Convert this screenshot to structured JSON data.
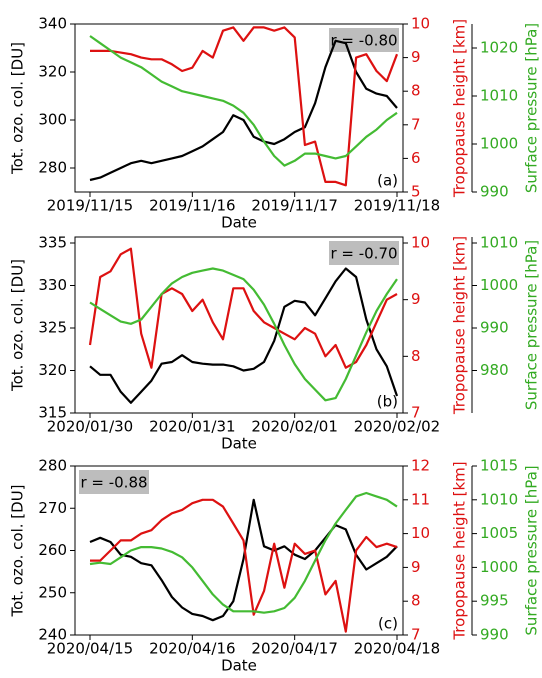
{
  "chart_data": [
    {
      "type": "line",
      "panel_label": "(a)",
      "annotation": "r = -0.80",
      "annotation_loc": "upper right",
      "x_label": "Date",
      "y_label": "Tot. ozo. col. [DU]",
      "y2_label": "Tropopause height [km]",
      "y3_label": "Surface pressure [hPa]",
      "xlim": [
        "2019/11/15",
        "2019/11/18"
      ],
      "xticks": [
        "2019/11/15",
        "2019/11/16",
        "2019/11/17",
        "2019/11/18"
      ],
      "ylim": [
        270,
        340
      ],
      "yticks": [
        280,
        300,
        320,
        340
      ],
      "y2lim": [
        5,
        10
      ],
      "y2ticks": [
        5,
        6,
        7,
        8,
        9,
        10
      ],
      "y3lim": [
        990,
        1025
      ],
      "y3ticks": [
        990,
        1000,
        1010,
        1020
      ],
      "series": [
        {
          "axis": "y",
          "color": "#000000",
          "values": [
            275,
            276,
            278,
            280,
            282,
            283,
            282,
            283,
            284,
            285,
            287,
            289,
            292,
            295,
            302,
            300,
            293,
            291,
            290,
            292,
            295,
            297,
            307,
            322,
            333,
            332,
            320,
            313,
            311,
            310,
            305
          ]
        },
        {
          "axis": "y2",
          "color": "#dd1111",
          "values": [
            9.2,
            9.2,
            9.2,
            9.15,
            9.1,
            9.0,
            8.95,
            8.95,
            8.8,
            8.6,
            8.7,
            9.2,
            9.0,
            9.8,
            9.9,
            9.5,
            9.9,
            9.9,
            9.8,
            9.9,
            9.6,
            6.4,
            6.5,
            5.3,
            5.3,
            5.2,
            9.0,
            9.1,
            8.6,
            8.3,
            9.1
          ]
        },
        {
          "axis": "y3",
          "color": "#44bb33",
          "values": [
            1022.5,
            1021,
            1019.5,
            1018,
            1017,
            1016,
            1014.5,
            1013,
            1012,
            1011,
            1010.5,
            1010,
            1009.5,
            1009,
            1008,
            1006.5,
            1004,
            1000.5,
            997.5,
            995.5,
            996.5,
            998,
            998,
            997.5,
            997,
            997.5,
            999.5,
            1001.5,
            1003,
            1005,
            1006.5
          ]
        }
      ]
    },
    {
      "type": "line",
      "panel_label": "(b)",
      "annotation": "r = -0.70",
      "annotation_loc": "upper right",
      "x_label": "Date",
      "y_label": "Tot. ozo. col. [DU]",
      "y2_label": "Tropopause height [km]",
      "y3_label": "Surface pressure [hPa]",
      "xlim": [
        "2020/01/30",
        "2020/02/02"
      ],
      "xticks": [
        "2020/01/30",
        "2020/01/31",
        "2020/02/01",
        "2020/02/02"
      ],
      "ylim": [
        315,
        335
      ],
      "yticks": [
        315,
        320,
        325,
        330,
        335
      ],
      "y2lim": [
        7,
        10
      ],
      "y2ticks": [
        7,
        8,
        9,
        10
      ],
      "y3lim": [
        970,
        1010
      ],
      "y3ticks": [
        980,
        990,
        1000,
        1010
      ],
      "series": [
        {
          "axis": "y",
          "color": "#000000",
          "values": [
            320.5,
            319.5,
            319.5,
            317.5,
            316.2,
            317.5,
            318.8,
            320.8,
            321,
            321.8,
            321,
            320.8,
            320.7,
            320.7,
            320.5,
            320,
            320.2,
            321,
            323.5,
            327.5,
            328.2,
            328,
            326.5,
            328.5,
            330.5,
            332,
            331,
            326,
            322.5,
            320.5,
            317
          ]
        },
        {
          "axis": "y2",
          "color": "#dd1111",
          "values": [
            8.2,
            9.4,
            9.5,
            9.8,
            9.9,
            8.4,
            7.8,
            9.1,
            9.2,
            9.1,
            8.8,
            9.0,
            8.6,
            8.3,
            9.2,
            9.2,
            8.8,
            8.6,
            8.5,
            8.4,
            8.3,
            8.5,
            8.4,
            8.0,
            8.2,
            7.8,
            7.9,
            8.2,
            8.6,
            9.0,
            9.1
          ]
        },
        {
          "axis": "y3",
          "color": "#44bb33",
          "values": [
            996,
            994.5,
            993,
            991.5,
            991,
            992,
            995,
            998,
            1000.5,
            1002,
            1003,
            1003.5,
            1004,
            1003.5,
            1002.5,
            1001.5,
            999,
            995.5,
            991,
            986,
            981.5,
            978,
            975.5,
            973,
            973.5,
            978,
            983.5,
            989,
            994,
            998,
            1001.5
          ]
        }
      ]
    },
    {
      "type": "line",
      "panel_label": "(c)",
      "annotation": "r = -0.88",
      "annotation_loc": "upper left",
      "x_label": "Date",
      "y_label": "Tot. ozo. col. [DU]",
      "y2_label": "Tropopause height [km]",
      "y3_label": "Surface pressure [hPa]",
      "xlim": [
        "2020/04/15",
        "2020/04/18"
      ],
      "xticks": [
        "2020/04/15",
        "2020/04/16",
        "2020/04/17",
        "2020/04/18"
      ],
      "ylim": [
        240,
        280
      ],
      "yticks": [
        240,
        250,
        260,
        270,
        280
      ],
      "y2lim": [
        7,
        12
      ],
      "y2ticks": [
        7,
        8,
        9,
        10,
        11,
        12
      ],
      "y3lim": [
        990,
        1015
      ],
      "y3ticks": [
        990,
        995,
        1000,
        1005,
        1010,
        1015
      ],
      "series": [
        {
          "axis": "y",
          "color": "#000000",
          "values": [
            262,
            263,
            262,
            259,
            258.5,
            257,
            256.5,
            253,
            249,
            246.5,
            245,
            244.5,
            243.5,
            244.5,
            248,
            258,
            272,
            261,
            260,
            261,
            259,
            258,
            260,
            263,
            266,
            265,
            259,
            255.5,
            257,
            258.5,
            261
          ]
        },
        {
          "axis": "y2",
          "color": "#dd1111",
          "values": [
            9.2,
            9.2,
            9.5,
            9.8,
            9.8,
            10.0,
            10.1,
            10.4,
            10.6,
            10.7,
            10.9,
            11.0,
            11.0,
            10.8,
            10.3,
            9.8,
            7.6,
            8.3,
            9.7,
            8.4,
            9.7,
            9.4,
            9.5,
            8.2,
            8.6,
            7.1,
            9.5,
            9.9,
            9.6,
            9.7,
            9.6
          ]
        },
        {
          "axis": "y3",
          "color": "#44bb33",
          "values": [
            1000.5,
            1000.7,
            1000.5,
            1001.5,
            1002.5,
            1003,
            1003,
            1002.8,
            1002.3,
            1001.5,
            1000,
            998,
            996,
            994.5,
            993.5,
            993.5,
            993.5,
            993.3,
            993.5,
            994,
            995.5,
            998,
            1001,
            1004,
            1006.5,
            1008.5,
            1010.5,
            1011,
            1010.5,
            1010,
            1009
          ]
        }
      ]
    }
  ]
}
